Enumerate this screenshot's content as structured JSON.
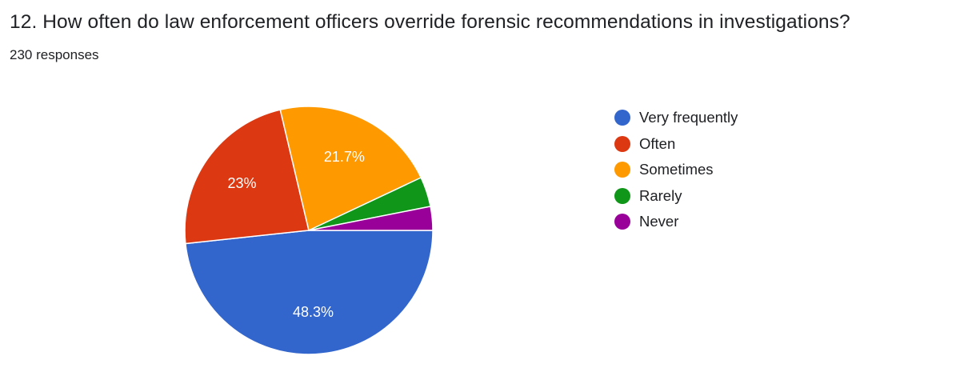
{
  "question": {
    "title": "12. How often do law enforcement officers override forensic recommendations in investigations?",
    "responses": "230 responses"
  },
  "chart_data": {
    "type": "pie",
    "categories": [
      "Very frequently",
      "Often",
      "Sometimes",
      "Rarely",
      "Never"
    ],
    "values": [
      48.3,
      23.0,
      21.7,
      3.9,
      3.1
    ],
    "data_labels": [
      "48.3%",
      "23%",
      "21.7%",
      "",
      ""
    ],
    "colors": [
      "#3366cc",
      "#dc3912",
      "#ff9900",
      "#109618",
      "#990099"
    ],
    "legend_position": "right"
  }
}
